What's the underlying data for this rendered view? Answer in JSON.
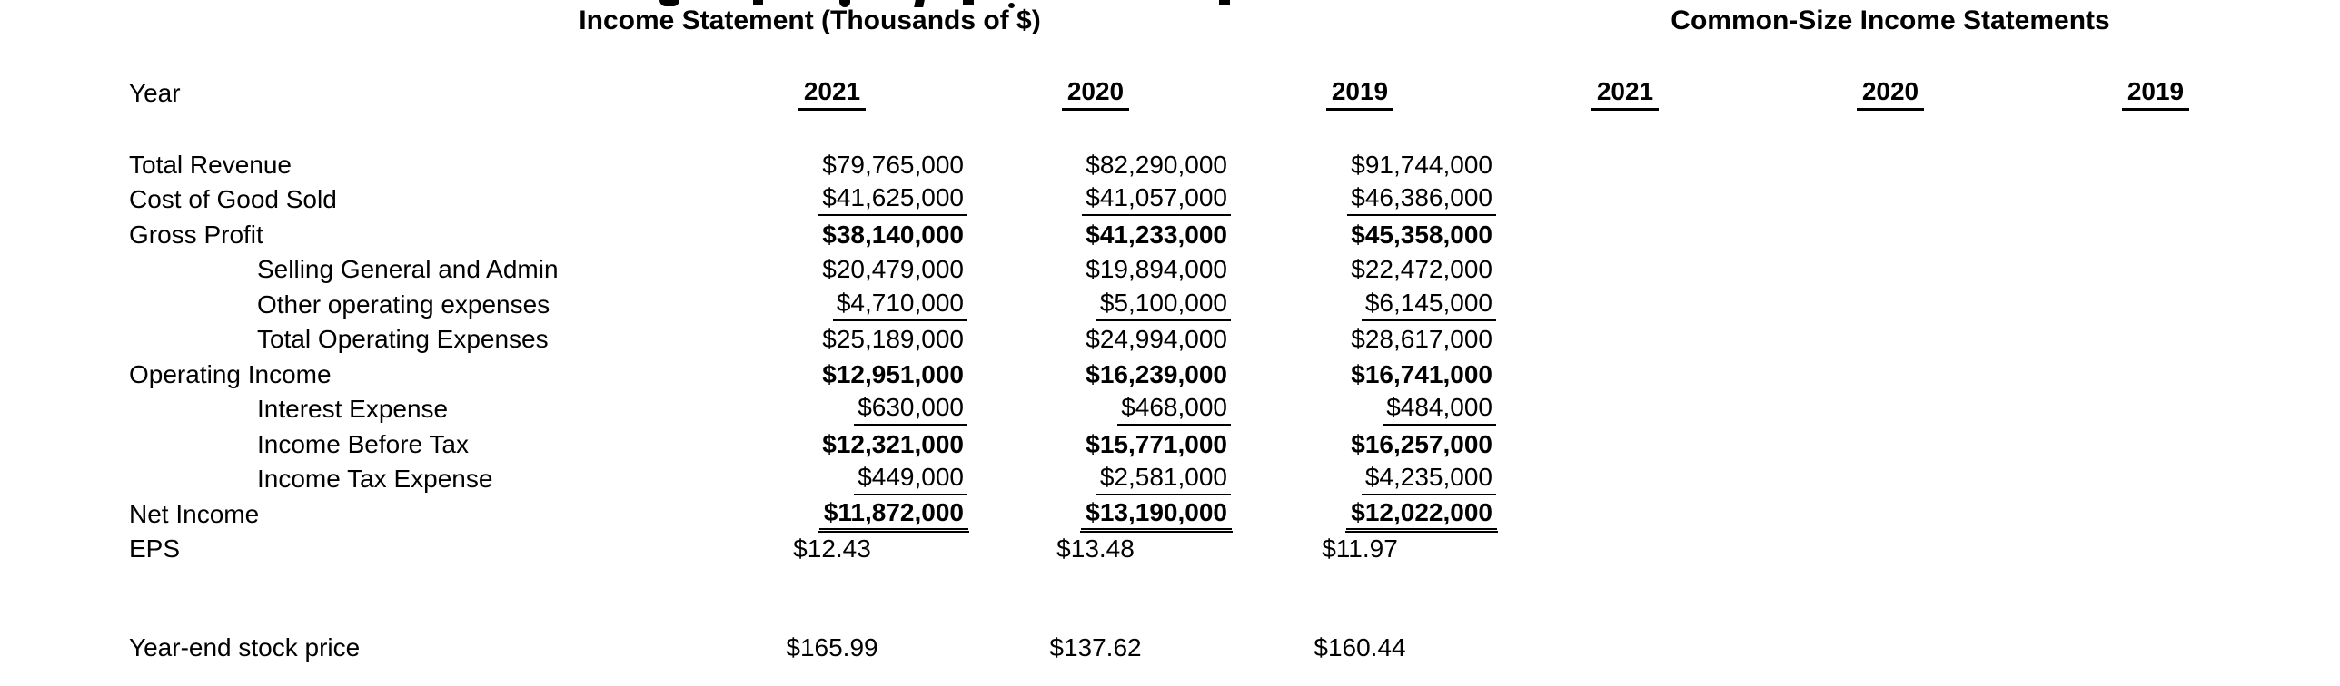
{
  "titles": {
    "income_statement": "Income Statement (Thousands of $)",
    "common_size": "Common-Size Income Statements"
  },
  "header": {
    "year_label": "Year",
    "statement_years": [
      "2021",
      "2020",
      "2019"
    ],
    "common_size_years": [
      "2021",
      "2020",
      "2019"
    ]
  },
  "clipped_top_line_present": true,
  "rows": [
    {
      "label": "Total Revenue",
      "indent": false,
      "bold": false,
      "underline": "none",
      "values": [
        "$79,765,000",
        "$82,290,000",
        "$91,744,000"
      ]
    },
    {
      "label": "Cost of Good Sold",
      "indent": false,
      "bold": false,
      "underline": "single",
      "values": [
        "$41,625,000",
        "$41,057,000",
        "$46,386,000"
      ]
    },
    {
      "label": "Gross Profit",
      "indent": false,
      "bold": true,
      "underline": "none",
      "values": [
        "$38,140,000",
        "$41,233,000",
        "$45,358,000"
      ]
    },
    {
      "label": "Selling General and Admin",
      "indent": true,
      "bold": false,
      "underline": "none",
      "values": [
        "$20,479,000",
        "$19,894,000",
        "$22,472,000"
      ]
    },
    {
      "label": "Other operating expenses",
      "indent": true,
      "bold": false,
      "underline": "single",
      "values": [
        "$4,710,000",
        "$5,100,000",
        "$6,145,000"
      ]
    },
    {
      "label": "Total Operating Expenses",
      "indent": true,
      "bold": false,
      "underline": "none",
      "values": [
        "$25,189,000",
        "$24,994,000",
        "$28,617,000"
      ]
    },
    {
      "label": "Operating Income",
      "indent": false,
      "bold": true,
      "underline": "none",
      "values": [
        "$12,951,000",
        "$16,239,000",
        "$16,741,000"
      ]
    },
    {
      "label": "Interest Expense",
      "indent": true,
      "bold": false,
      "underline": "single",
      "values": [
        "$630,000",
        "$468,000",
        "$484,000"
      ]
    },
    {
      "label": "Income Before Tax",
      "indent": true,
      "bold": true,
      "underline": "none",
      "values": [
        "$12,321,000",
        "$15,771,000",
        "$16,257,000"
      ]
    },
    {
      "label": "Income Tax Expense",
      "indent": true,
      "bold": false,
      "underline": "single",
      "values": [
        "$449,000",
        "$2,581,000",
        "$4,235,000"
      ]
    },
    {
      "label": "Net Income",
      "indent": false,
      "bold": true,
      "underline": "double",
      "values": [
        "$11,872,000",
        "$13,190,000",
        "$12,022,000"
      ]
    },
    {
      "label": "EPS",
      "indent": false,
      "bold": false,
      "underline": "none",
      "align": "center",
      "values": [
        "$12.43",
        "$13.48",
        "$11.97"
      ]
    }
  ],
  "stock_row": {
    "label": "Year-end stock price",
    "values": [
      "$165.99",
      "$137.62",
      "$160.44"
    ]
  }
}
